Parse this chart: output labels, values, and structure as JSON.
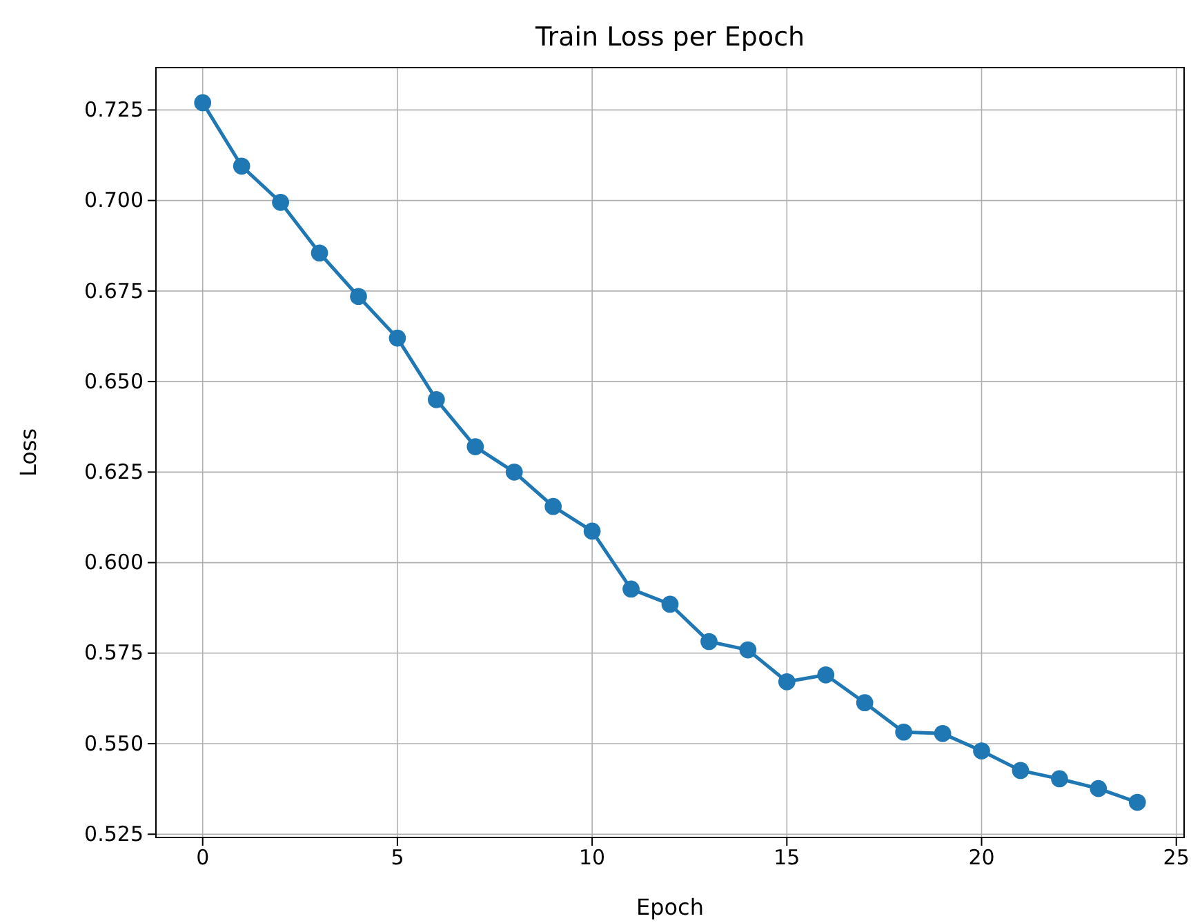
{
  "chart_data": {
    "type": "line",
    "title": "Train Loss per Epoch",
    "xlabel": "Epoch",
    "ylabel": "Loss",
    "x": [
      0,
      1,
      2,
      3,
      4,
      5,
      6,
      7,
      8,
      9,
      10,
      11,
      12,
      13,
      14,
      15,
      16,
      17,
      18,
      19,
      20,
      21,
      22,
      23,
      24
    ],
    "series": [
      {
        "color": "#1f77b4",
        "values": [
          0.727,
          0.7095,
          0.6995,
          0.6855,
          0.6735,
          0.662,
          0.645,
          0.632,
          0.625,
          0.6155,
          0.6087,
          0.5927,
          0.5885,
          0.5782,
          0.5759,
          0.5671,
          0.569,
          0.5613,
          0.5532,
          0.5528,
          0.548,
          0.5426,
          0.5403,
          0.5376,
          0.5338
        ]
      }
    ],
    "xlim": [
      -1.2,
      25.2
    ],
    "xticks": [
      0,
      5,
      10,
      15,
      20,
      25
    ],
    "ylim": [
      0.5241,
      0.7367
    ],
    "yticks": [
      {
        "value": 0.525,
        "label": "0.525"
      },
      {
        "value": 0.55,
        "label": "0.550"
      },
      {
        "value": 0.575,
        "label": "0.575"
      },
      {
        "value": 0.6,
        "label": "0.600"
      },
      {
        "value": 0.625,
        "label": "0.625"
      },
      {
        "value": 0.65,
        "label": "0.650"
      },
      {
        "value": 0.675,
        "label": "0.675"
      },
      {
        "value": 0.7,
        "label": "0.700"
      },
      {
        "value": 0.725,
        "label": "0.725"
      }
    ],
    "grid": true,
    "marker": "circle",
    "line_style": "solid"
  }
}
